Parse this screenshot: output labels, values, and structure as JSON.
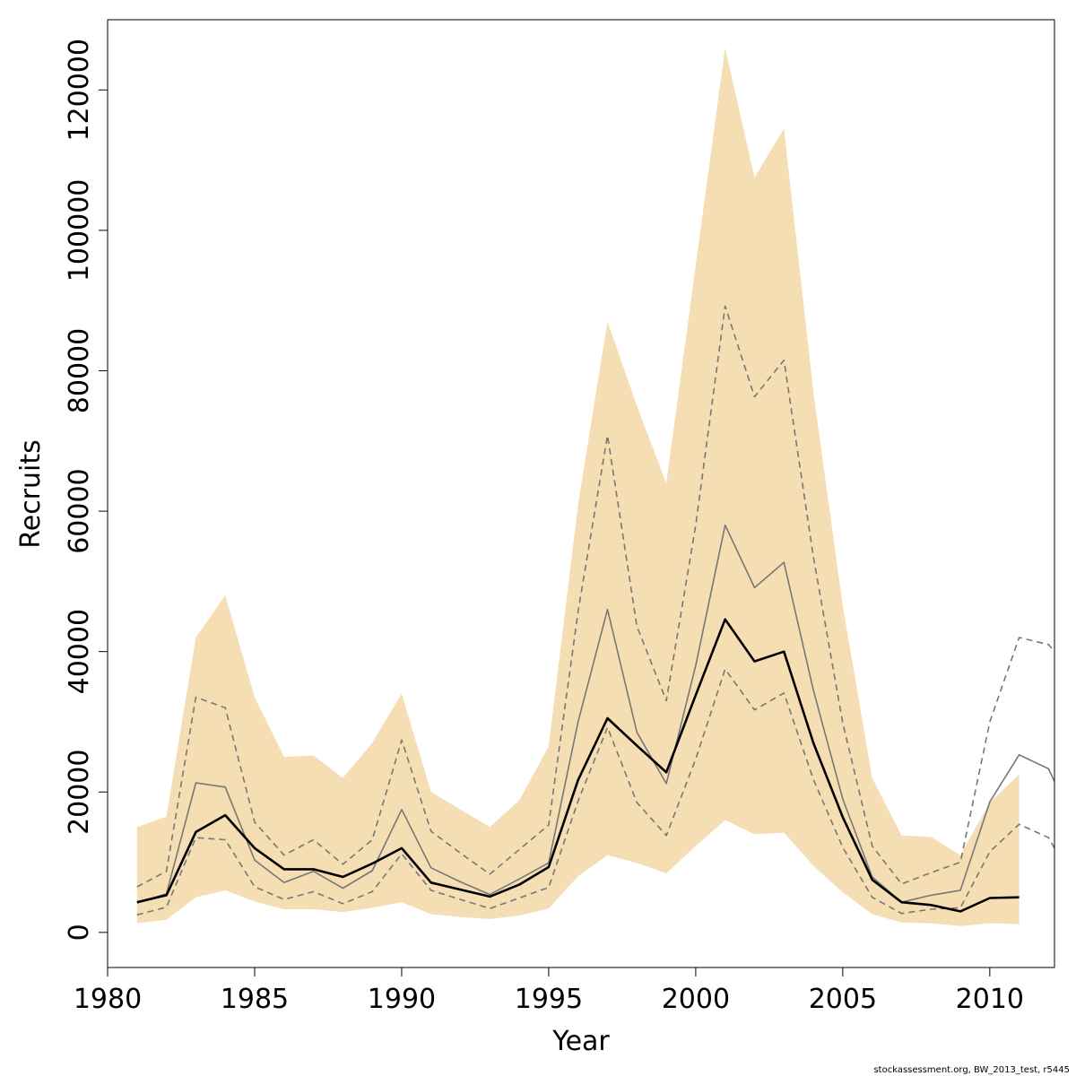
{
  "chart_data": {
    "type": "area",
    "title": "",
    "xlabel": "Year",
    "ylabel": "Recruits",
    "xlim": [
      1980,
      2012.2
    ],
    "ylim": [
      -5000,
      130000
    ],
    "x_ticks": [
      1980,
      1985,
      1990,
      1995,
      2000,
      2005,
      2010
    ],
    "y_ticks": [
      0,
      20000,
      40000,
      60000,
      80000,
      100000,
      120000
    ],
    "grid": false,
    "legend": "none",
    "band": {
      "color": "#f5deb3",
      "x": [
        1981,
        1982,
        1983,
        1984,
        1985,
        1986,
        1987,
        1988,
        1989,
        1990,
        1991,
        1992,
        1993,
        1994,
        1995,
        1996,
        1997,
        1998,
        1999,
        2000,
        2001,
        2002,
        2003,
        2004,
        2005,
        2006,
        2007,
        2008,
        2009,
        2010,
        2011
      ],
      "upper": [
        15000,
        16500,
        42000,
        48000,
        33500,
        25000,
        25200,
        22000,
        27000,
        34000,
        20000,
        17500,
        15000,
        18800,
        26500,
        61000,
        87000,
        75000,
        64000,
        95000,
        126000,
        107500,
        114500,
        77000,
        46500,
        22000,
        13800,
        13600,
        11000,
        18500,
        22500
      ],
      "lower": [
        1300,
        1800,
        5000,
        6000,
        4400,
        3300,
        3300,
        2900,
        3500,
        4300,
        2600,
        2200,
        1900,
        2400,
        3400,
        8000,
        11000,
        9900,
        8400,
        12300,
        16000,
        14000,
        14200,
        9500,
        5700,
        2600,
        1400,
        1300,
        900,
        1300,
        1200
      ]
    },
    "series": [
      {
        "style": "thin-gray",
        "color": "#777777",
        "x": [
          1981,
          1982,
          1983,
          1984,
          1985,
          1986,
          1987,
          1988,
          1989,
          1990,
          1991,
          1992,
          1993,
          1994,
          1995,
          1996,
          1997,
          1998,
          1999,
          2000,
          2001,
          2002,
          2003,
          2004,
          2005,
          2006,
          2007,
          2008,
          2009,
          2010,
          2011,
          2012,
          2012.2
        ],
        "values": [
          4200,
          5500,
          21300,
          20700,
          10300,
          7100,
          8700,
          6300,
          8800,
          17500,
          9200,
          7200,
          5400,
          7600,
          9900,
          30000,
          46000,
          28500,
          21200,
          38000,
          58000,
          49100,
          52700,
          34500,
          19000,
          7900,
          4300,
          5300,
          6000,
          18600,
          25300,
          23300,
          21500
        ]
      },
      {
        "style": "dashed-upper",
        "color": "#777777",
        "x": [
          1981,
          1982,
          1983,
          1984,
          1985,
          1986,
          1987,
          1988,
          1989,
          1990,
          1991,
          1992,
          1993,
          1994,
          1995,
          1996,
          1997,
          1998,
          1999,
          2000,
          2001,
          2002,
          2003,
          2004,
          2005,
          2006,
          2007,
          2008,
          2009,
          2010,
          2011,
          2012,
          2012.2
        ],
        "values": [
          6500,
          8700,
          33500,
          32000,
          15700,
          11000,
          13200,
          9700,
          13200,
          27400,
          14400,
          11300,
          8300,
          11800,
          15300,
          45700,
          70800,
          43600,
          33000,
          58000,
          89200,
          76300,
          81500,
          53500,
          29800,
          12300,
          6900,
          8500,
          10000,
          30000,
          42000,
          41000,
          40000
        ]
      },
      {
        "style": "dashed-lower",
        "color": "#777777",
        "x": [
          1981,
          1982,
          1983,
          1984,
          1985,
          1986,
          1987,
          1988,
          1989,
          1990,
          1991,
          1992,
          1993,
          1994,
          1995,
          1996,
          1997,
          1998,
          1999,
          2000,
          2001,
          2002,
          2003,
          2004,
          2005,
          2006,
          2007,
          2008,
          2009,
          2010,
          2011,
          2012,
          2012.2
        ],
        "values": [
          2500,
          3600,
          13500,
          13200,
          6500,
          4700,
          5800,
          4100,
          5800,
          11200,
          6000,
          4700,
          3400,
          4900,
          6400,
          18700,
          29200,
          18500,
          13800,
          24700,
          37500,
          31700,
          34100,
          21800,
          12100,
          5000,
          2700,
          3300,
          3500,
          11500,
          15400,
          13500,
          12000
        ]
      },
      {
        "style": "thick-black",
        "color": "#000000",
        "x": [
          1981,
          1982,
          1983,
          1984,
          1985,
          1986,
          1987,
          1988,
          1989,
          1990,
          1991,
          1992,
          1993,
          1994,
          1995,
          1996,
          1997,
          1998,
          1999,
          2000,
          2001,
          2002,
          2003,
          2004,
          2005,
          2006,
          2007,
          2008,
          2009,
          2010,
          2011
        ],
        "values": [
          4300,
          5300,
          14300,
          16700,
          12000,
          9000,
          9000,
          7900,
          9800,
          12000,
          7100,
          6100,
          5100,
          6800,
          9300,
          21700,
          30500,
          26600,
          22800,
          33800,
          44600,
          38600,
          40000,
          27000,
          16400,
          7500,
          4300,
          3900,
          3000,
          4900,
          5000
        ]
      }
    ],
    "footnote": "stockassessment.org, BW_2013_test, r5445"
  }
}
